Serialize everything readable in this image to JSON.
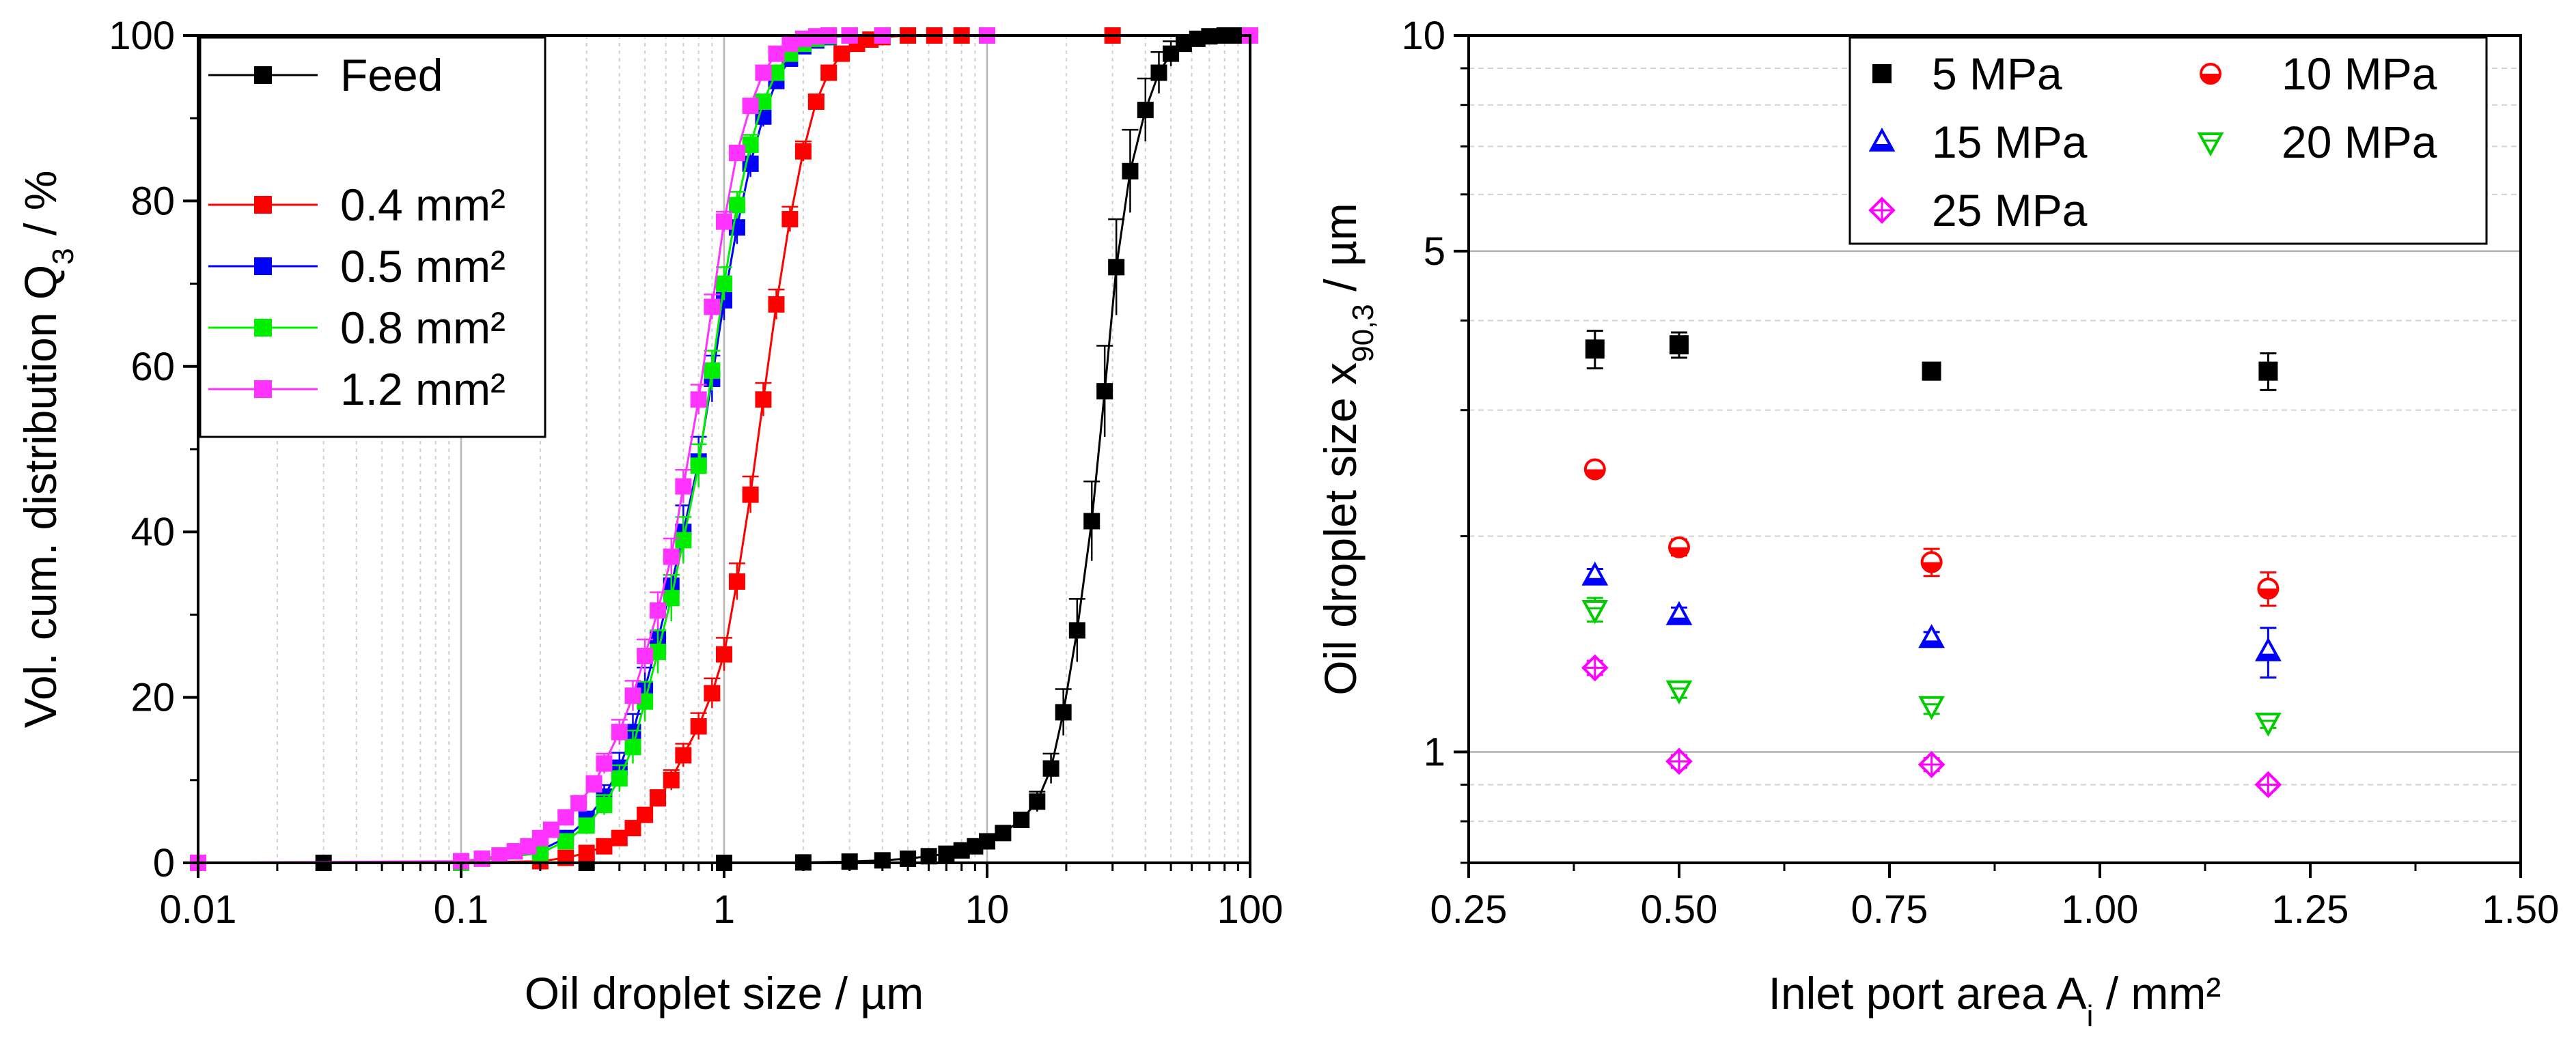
{
  "chart_data": [
    {
      "type": "line",
      "title": "",
      "xlabel": "Oil droplet size / µm",
      "ylabel": "Vol. cum. distribution Q₃ / %",
      "xscale": "log",
      "xlim": [
        0.01,
        100
      ],
      "ylim": [
        0,
        100
      ],
      "xticks": [
        "0.01",
        "0.1",
        "1",
        "10",
        "100"
      ],
      "yticks": [
        "0",
        "20",
        "40",
        "60",
        "80",
        "100"
      ],
      "grid": "vertical minor and major",
      "legend_position": "top-left",
      "series": [
        {
          "name": "Feed",
          "color": "#000000",
          "x": [
            0.01,
            0.03,
            0.1,
            0.3,
            1,
            2,
            3,
            4,
            5,
            6,
            7,
            8,
            9,
            10,
            11.5,
            13.5,
            15.5,
            17.5,
            19.5,
            22,
            25,
            28,
            31,
            35,
            40,
            45,
            50,
            56,
            63,
            70,
            80,
            90,
            100
          ],
          "y": [
            0,
            0,
            0,
            0,
            0,
            0.05,
            0.15,
            0.3,
            0.5,
            0.8,
            1.1,
            1.5,
            2.0,
            2.6,
            3.6,
            5.2,
            7.4,
            11.4,
            18.2,
            28.1,
            41.3,
            57.0,
            72.0,
            83.6,
            91.0,
            95.5,
            97.8,
            99.0,
            99.6,
            99.9,
            100,
            100,
            100
          ],
          "err": [
            0,
            0,
            0,
            0,
            0,
            0,
            0,
            0,
            0,
            0,
            0,
            0,
            0,
            0.4,
            0.6,
            0.8,
            1.2,
            1.8,
            2.8,
            3.8,
            4.8,
            5.5,
            5.8,
            5.0,
            3.8,
            2.5,
            1.5,
            0.8,
            0.4,
            0.2,
            0,
            0,
            0
          ]
        },
        {
          "name": "0.4 mm²",
          "color": "#ff0000",
          "x": [
            0.01,
            0.1,
            0.2,
            0.25,
            0.3,
            0.35,
            0.4,
            0.45,
            0.5,
            0.56,
            0.63,
            0.7,
            0.8,
            0.9,
            1.0,
            1.12,
            1.26,
            1.41,
            1.58,
            1.78,
            2.0,
            2.24,
            2.5,
            2.8,
            3.2,
            3.6,
            4.0,
            5.0,
            6.3,
            8.0,
            10,
            30,
            100
          ],
          "y": [
            0,
            0,
            0.2,
            0.6,
            1.2,
            2.0,
            3.0,
            4.2,
            5.8,
            7.8,
            10.0,
            13.0,
            16.5,
            20.5,
            25.2,
            34.0,
            44.5,
            56.0,
            67.5,
            77.8,
            86.0,
            92.0,
            95.5,
            97.8,
            99.0,
            99.5,
            99.8,
            100,
            100,
            100,
            100,
            100,
            100
          ],
          "err": [
            0,
            0,
            0,
            0,
            0,
            0,
            0.4,
            0.6,
            0.8,
            1.0,
            1.2,
            1.4,
            1.6,
            1.8,
            2.0,
            2.2,
            2.2,
            2.0,
            1.8,
            1.5,
            1.2,
            0.8,
            0.5,
            0.3,
            0.2,
            0.1,
            0,
            0,
            0,
            0,
            0,
            0,
            0
          ]
        },
        {
          "name": "0.5 mm²",
          "color": "#0000ff",
          "x": [
            0.01,
            0.1,
            0.2,
            0.25,
            0.3,
            0.35,
            0.4,
            0.45,
            0.5,
            0.56,
            0.63,
            0.7,
            0.8,
            0.9,
            1.0,
            1.12,
            1.26,
            1.41,
            1.58,
            1.78,
            2.0,
            2.24,
            2.5,
            3.0,
            4.0,
            10,
            100
          ],
          "y": [
            0,
            0,
            1.5,
            3.0,
            5.2,
            8.0,
            11.5,
            15.8,
            21.0,
            27.0,
            33.5,
            40.0,
            48.5,
            58.5,
            68.0,
            76.8,
            84.5,
            90.2,
            94.5,
            97.2,
            98.7,
            99.4,
            99.8,
            100,
            100,
            100,
            100
          ],
          "err": [
            0,
            0,
            0.3,
            0.6,
            1.0,
            1.4,
            1.8,
            2.2,
            2.6,
            3.0,
            3.2,
            3.2,
            3.0,
            2.8,
            2.4,
            2.0,
            1.6,
            1.2,
            0.8,
            0.5,
            0.3,
            0.2,
            0.1,
            0,
            0,
            0,
            0
          ]
        },
        {
          "name": "0.8 mm²",
          "color": "#00ee00",
          "x": [
            0.01,
            0.1,
            0.2,
            0.25,
            0.3,
            0.35,
            0.4,
            0.45,
            0.5,
            0.56,
            0.63,
            0.7,
            0.8,
            0.9,
            1.0,
            1.12,
            1.26,
            1.41,
            1.58,
            1.78,
            2.0,
            2.24,
            2.5,
            3.0,
            4.0,
            10,
            100
          ],
          "y": [
            0,
            0,
            1.2,
            2.6,
            4.5,
            7.0,
            10.2,
            14.0,
            19.5,
            25.5,
            32.0,
            39.0,
            48.0,
            59.5,
            70.0,
            79.5,
            86.8,
            92.0,
            95.5,
            97.8,
            99.0,
            99.6,
            99.9,
            100,
            100,
            100,
            100
          ],
          "err": [
            0,
            0,
            0.3,
            0.5,
            0.8,
            1.2,
            1.6,
            2.0,
            2.4,
            2.6,
            2.8,
            2.8,
            2.6,
            2.4,
            2.0,
            1.6,
            1.2,
            0.8,
            0.6,
            0.4,
            0.2,
            0.1,
            0,
            0,
            0,
            0,
            0
          ]
        },
        {
          "name": "1.2 mm²",
          "color": "#ff33ff",
          "x": [
            0.01,
            0.1,
            0.12,
            0.14,
            0.16,
            0.18,
            0.2,
            0.22,
            0.25,
            0.28,
            0.32,
            0.35,
            0.4,
            0.45,
            0.5,
            0.56,
            0.63,
            0.7,
            0.8,
            0.9,
            1.0,
            1.12,
            1.26,
            1.41,
            1.58,
            1.78,
            2.0,
            2.24,
            2.5,
            3.0,
            4.0,
            10,
            100
          ],
          "y": [
            0,
            0.2,
            0.5,
            0.9,
            1.4,
            2.0,
            3.0,
            4.0,
            5.5,
            7.2,
            9.5,
            12.0,
            15.8,
            20.2,
            25.0,
            30.5,
            37.0,
            45.5,
            56.0,
            67.2,
            77.5,
            85.8,
            91.5,
            95.5,
            97.8,
            99.0,
            99.6,
            99.9,
            100,
            100,
            100,
            100,
            100
          ],
          "err": [
            0,
            0,
            0,
            0,
            0,
            0,
            0.3,
            0.4,
            0.6,
            0.8,
            1.0,
            1.2,
            1.5,
            1.8,
            2.0,
            2.2,
            2.2,
            2.0,
            1.8,
            1.5,
            1.2,
            0.9,
            0.6,
            0.4,
            0.2,
            0.1,
            0,
            0,
            0,
            0,
            0,
            0,
            0
          ]
        }
      ]
    },
    {
      "type": "scatter",
      "title": "",
      "xlabel": "Inlet port area A",
      "xlabel_sub": "i",
      "xlabel_suffix": " / mm²",
      "ylabel": "Oil droplet size x",
      "ylabel_sub": "90,3",
      "ylabel_suffix": " / µm",
      "yscale": "log",
      "xlim": [
        0.25,
        1.5
      ],
      "ylim": [
        0.7,
        10
      ],
      "xticks": [
        "0.25",
        "0.50",
        "0.75",
        "1.00",
        "1.25",
        "1.50"
      ],
      "yticks": [
        "1",
        "5",
        "10"
      ],
      "grid": "horizontal",
      "legend_position": "top-right",
      "series": [
        {
          "name": "5 MPa",
          "color": "#000000",
          "marker": "square-filled",
          "x": [
            0.4,
            0.5,
            0.8,
            1.2
          ],
          "y": [
            3.65,
            3.7,
            3.4,
            3.4
          ],
          "err": [
            0.22,
            0.15,
            0.06,
            0.2
          ]
        },
        {
          "name": "10 MPa",
          "color": "#ff0000",
          "marker": "circle-half",
          "x": [
            0.4,
            0.5,
            0.8,
            1.2
          ],
          "y": [
            2.48,
            1.93,
            1.84,
            1.69
          ],
          "err": [
            0.05,
            0.05,
            0.08,
            0.09
          ]
        },
        {
          "name": "15 MPa",
          "color": "#0000ff",
          "marker": "triangle-up-half",
          "x": [
            0.4,
            0.5,
            0.8,
            1.2
          ],
          "y": [
            1.76,
            1.55,
            1.44,
            1.38
          ],
          "err": [
            0.04,
            0.04,
            0.03,
            0.11
          ]
        },
        {
          "name": "20 MPa",
          "color": "#00cc00",
          "marker": "triangle-down-half",
          "x": [
            0.4,
            0.5,
            0.8,
            1.2
          ],
          "y": [
            1.58,
            1.22,
            1.16,
            1.1
          ],
          "err": [
            0.06,
            0.03,
            0.03,
            0.02
          ]
        },
        {
          "name": "25 MPa",
          "color": "#ff00ff",
          "marker": "diamond-half",
          "x": [
            0.4,
            0.5,
            0.8,
            1.2
          ],
          "y": [
            1.31,
            0.97,
            0.96,
            0.9
          ],
          "err": [
            0.03,
            0.02,
            0.02,
            0.015
          ]
        }
      ]
    }
  ]
}
